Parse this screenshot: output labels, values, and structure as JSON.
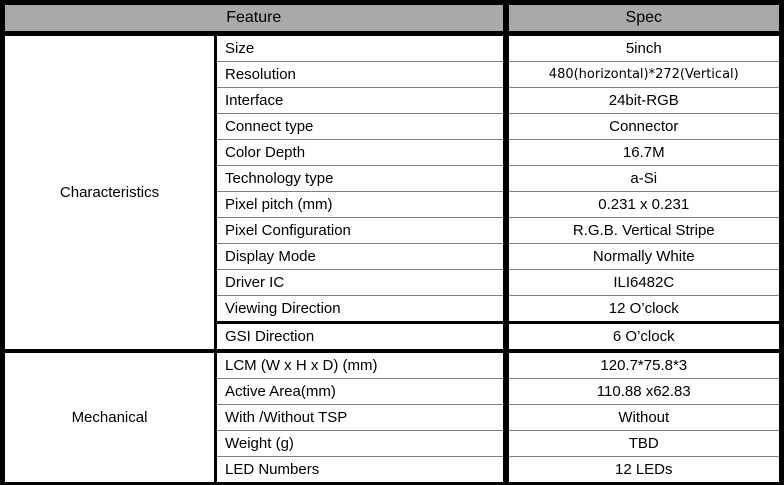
{
  "table": {
    "header": {
      "feature": "Feature",
      "spec": "Spec"
    },
    "sections": [
      {
        "group": "Characteristics",
        "rows": [
          {
            "feature": "Size",
            "spec": "5inch"
          },
          {
            "feature": "Resolution",
            "spec": "480(horizontal)*272(Vertical)"
          },
          {
            "feature": "Interface",
            "spec": "24bit-RGB"
          },
          {
            "feature": "Connect type",
            "spec": "Connector"
          },
          {
            "feature": "Color Depth",
            "spec": "16.7M"
          },
          {
            "feature": "Technology type",
            "spec": "a-Si"
          },
          {
            "feature": "Pixel pitch (mm)",
            "spec": "0.231 x 0.231"
          },
          {
            "feature": "Pixel Configuration",
            "spec": "R.G.B. Vertical Stripe"
          },
          {
            "feature": "Display Mode",
            "spec": "Normally White"
          },
          {
            "feature": "Driver IC",
            "spec": "ILI6482C"
          },
          {
            "feature": "Viewing Direction",
            "spec": "12 O’clock"
          },
          {
            "feature": "GSI Direction",
            "spec": "6 O’clock"
          }
        ]
      },
      {
        "group": "Mechanical",
        "rows": [
          {
            "feature": "LCM (W x H x D) (mm)",
            "spec": "120.7*75.8*3"
          },
          {
            "feature": "Active Area(mm)",
            "spec": "110.88 x62.83"
          },
          {
            "feature": "With /Without TSP",
            "spec": "Without"
          },
          {
            "feature": "Weight (g)",
            "spec": "TBD"
          },
          {
            "feature": "LED Numbers",
            "spec": "12 LEDs"
          }
        ]
      }
    ]
  },
  "colors": {
    "header_bg": "#a9a9a9",
    "grid_line": "#7f7f7f",
    "frame": "#000000"
  }
}
